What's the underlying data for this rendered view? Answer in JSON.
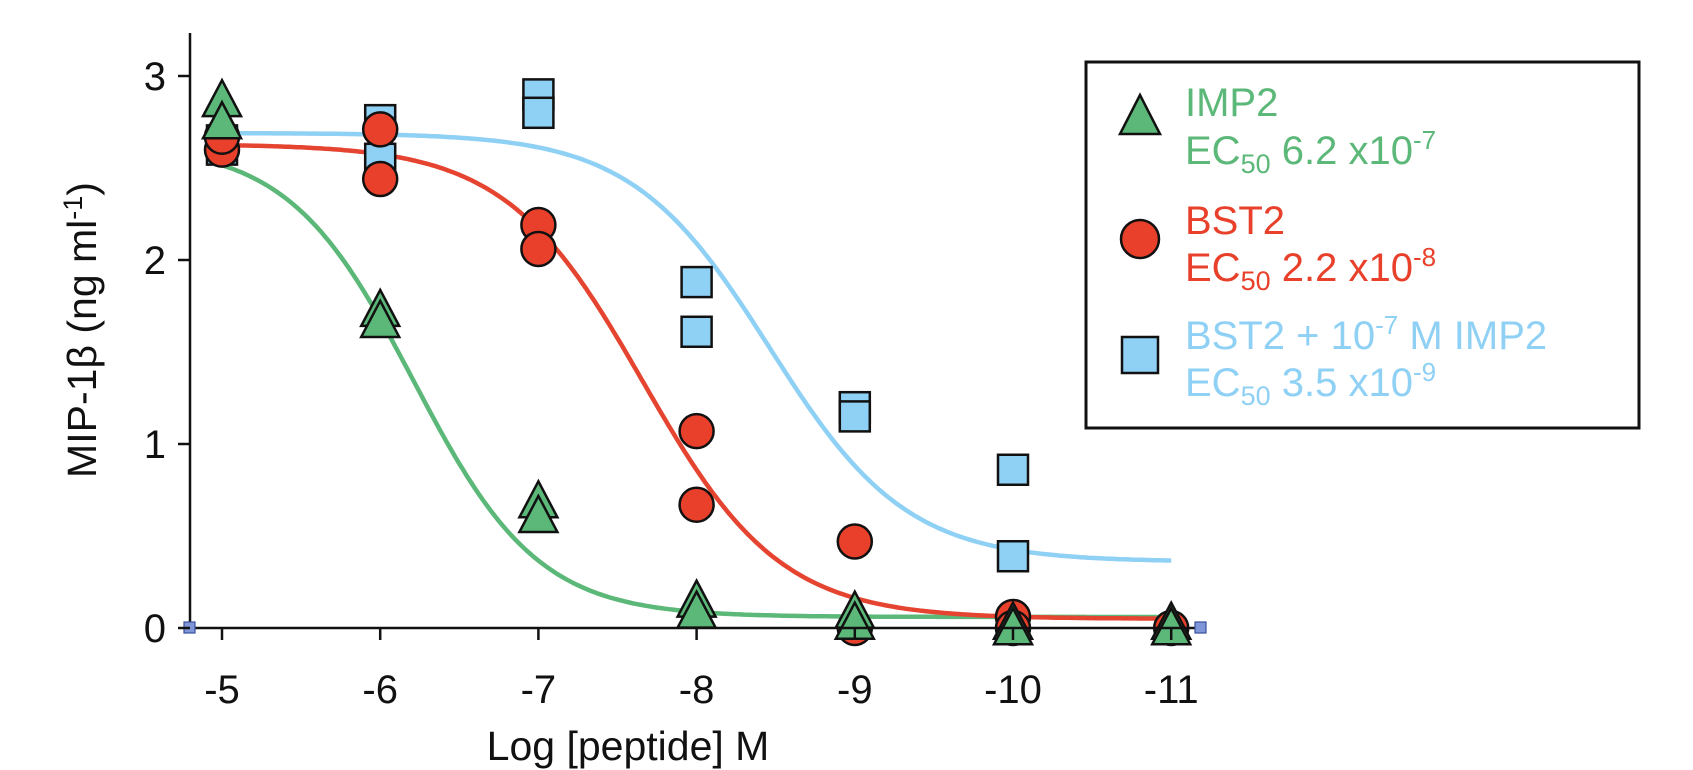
{
  "chart_data": {
    "type": "scatter",
    "xlabel": "Log [peptide] M",
    "ylabel": "MIP-1β (ng ml⁻¹)",
    "x_ticks": [
      -5,
      -6,
      -7,
      -8,
      -9,
      -10,
      -11
    ],
    "x_tick_labels": [
      "-5",
      "-6",
      "-7",
      "-8",
      "-9",
      "-10",
      "-11"
    ],
    "y_ticks": [
      0,
      1,
      2,
      3
    ],
    "y_tick_labels": [
      "0",
      "1",
      "2",
      "3"
    ],
    "xlim": [
      -4.8,
      -11.2
    ],
    "ylim": [
      0,
      3.2
    ],
    "x_axis_reversed": true,
    "grid": false,
    "legend_position": "top-right",
    "series": [
      {
        "name": "IMP2",
        "ec50_label": "EC₅₀ 6.2 x10⁻⁷",
        "marker": "triangle",
        "color": "#5cb878",
        "line_color": "#5cb878",
        "points": [
          {
            "x": -5,
            "y": 2.86
          },
          {
            "x": -5,
            "y": 2.74
          },
          {
            "x": -6,
            "y": 1.72
          },
          {
            "x": -6,
            "y": 1.66
          },
          {
            "x": -7,
            "y": 0.68
          },
          {
            "x": -7,
            "y": 0.6
          },
          {
            "x": -8,
            "y": 0.14
          },
          {
            "x": -8,
            "y": 0.08
          },
          {
            "x": -9,
            "y": 0.08
          },
          {
            "x": -9,
            "y": 0.02
          },
          {
            "x": -10,
            "y": 0.02
          },
          {
            "x": -10,
            "y": -0.01
          },
          {
            "x": -11,
            "y": 0.02
          },
          {
            "x": -11,
            "y": -0.01
          }
        ],
        "fit": {
          "top": 2.63,
          "bottom": 0.06,
          "logEC50": -6.21,
          "hill": 1.1
        }
      },
      {
        "name": "BST2",
        "ec50_label": "EC₅₀ 2.2 x10⁻⁸",
        "marker": "circle",
        "color": "#e8402a",
        "line_color": "#e54430",
        "points": [
          {
            "x": -5,
            "y": 2.6
          },
          {
            "x": -5,
            "y": 2.67
          },
          {
            "x": -6,
            "y": 2.71
          },
          {
            "x": -6,
            "y": 2.44
          },
          {
            "x": -7,
            "y": 2.19
          },
          {
            "x": -7,
            "y": 2.06
          },
          {
            "x": -8,
            "y": 1.07
          },
          {
            "x": -8,
            "y": 0.67
          },
          {
            "x": -9,
            "y": 0.47
          },
          {
            "x": -9,
            "y": 0.0
          },
          {
            "x": -10,
            "y": 0.06
          },
          {
            "x": -10,
            "y": 0.0
          },
          {
            "x": -11,
            "y": 0.0
          }
        ],
        "fit": {
          "top": 2.63,
          "bottom": 0.05,
          "logEC50": -7.66,
          "hill": 1.0
        }
      },
      {
        "name": "BST2 + 10⁻⁷ M IMP2",
        "ec50_label": "EC₅₀ 3.5 x10⁻⁹",
        "marker": "square",
        "color": "#8fd0f5",
        "line_color": "#8fd0f5",
        "points": [
          {
            "x": -5,
            "y": 2.65
          },
          {
            "x": -5,
            "y": 2.6
          },
          {
            "x": -6,
            "y": 2.76
          },
          {
            "x": -6,
            "y": 2.55
          },
          {
            "x": -7,
            "y": 2.9
          },
          {
            "x": -7,
            "y": 2.8
          },
          {
            "x": -8,
            "y": 1.88
          },
          {
            "x": -8,
            "y": 1.61
          },
          {
            "x": -9,
            "y": 1.2
          },
          {
            "x": -9,
            "y": 1.15
          },
          {
            "x": -10,
            "y": 0.86
          },
          {
            "x": -10,
            "y": 0.39
          }
        ],
        "fit": {
          "top": 2.69,
          "bottom": 0.36,
          "logEC50": -8.46,
          "hill": 1.0
        }
      }
    ]
  },
  "legend": {
    "items": [
      {
        "name_main": "IMP2",
        "ec_prefix": "EC",
        "ec_sub": "50",
        "ec_value": " 6.2 x10",
        "ec_exp": "-7",
        "color": "#5cb878"
      },
      {
        "name_main": "BST2",
        "ec_prefix": "EC",
        "ec_sub": "50",
        "ec_value": " 2.2 x10",
        "ec_exp": "-8",
        "color": "#e8402a"
      },
      {
        "name_main": "BST2 + 10",
        "name_exp": "-7",
        "name_tail": " M IMP2",
        "ec_prefix": "EC",
        "ec_sub": "50",
        "ec_value": " 3.5 x10",
        "ec_exp": "-9",
        "color": "#8fd0f5"
      }
    ]
  },
  "axis_text": {
    "ylabel_main": "MIP-1β (ng ml",
    "ylabel_exp": "-1",
    "ylabel_close": ")"
  }
}
